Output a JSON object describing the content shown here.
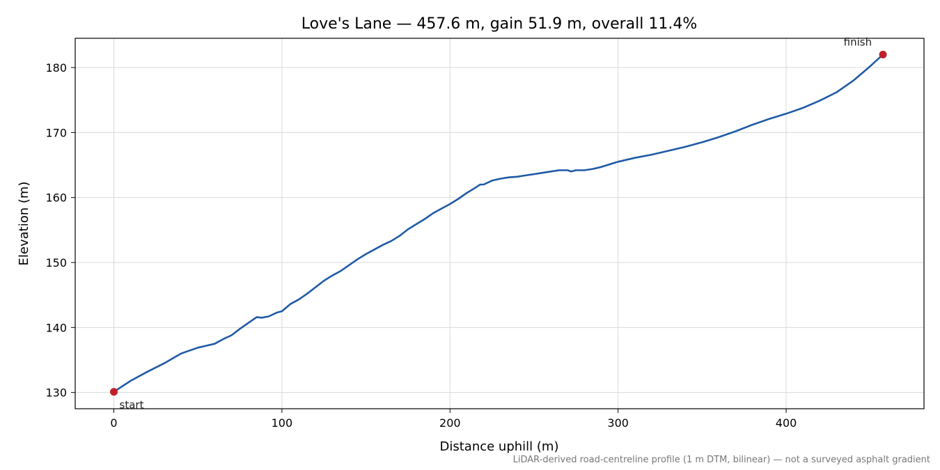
{
  "chart_data": {
    "type": "line",
    "title": "Love's Lane — 457.6 m, gain 51.9 m, overall 11.4%",
    "xlabel": "Distance uphill (m)",
    "ylabel": "Elevation (m)",
    "footnote": "LiDAR-derived road-centreline profile (1 m DTM, bilinear) — not a surveyed asphalt gradient",
    "xlim": [
      -23,
      482
    ],
    "ylim": [
      127.5,
      184.5
    ],
    "xticks": [
      0,
      100,
      200,
      300,
      400
    ],
    "yticks": [
      130,
      140,
      150,
      160,
      170,
      180
    ],
    "grid": true,
    "line_color": "#1f5aa6",
    "marker_color": "#c0202a",
    "series": [
      {
        "x": [
          0,
          10,
          20,
          30,
          40,
          50,
          55,
          60,
          65,
          70,
          75,
          80,
          85,
          88,
          92,
          97,
          100,
          105,
          110,
          115,
          120,
          125,
          130,
          135,
          140,
          145,
          150,
          155,
          160,
          165,
          170,
          175,
          180,
          185,
          190,
          195,
          200,
          205,
          210,
          215,
          218,
          220,
          225,
          230,
          235,
          240,
          245,
          250,
          255,
          260,
          265,
          270,
          272,
          275,
          280,
          285,
          290,
          300,
          310,
          320,
          330,
          340,
          350,
          360,
          370,
          380,
          390,
          400,
          410,
          420,
          430,
          440,
          450,
          457.6
        ],
        "y": [
          130.1,
          131.8,
          133.2,
          134.5,
          136.0,
          136.9,
          137.2,
          137.5,
          138.2,
          138.8,
          139.8,
          140.7,
          141.6,
          141.5,
          141.7,
          142.3,
          142.5,
          143.6,
          144.3,
          145.2,
          146.2,
          147.2,
          148.0,
          148.7,
          149.6,
          150.5,
          151.3,
          152.0,
          152.7,
          153.3,
          154.1,
          155.1,
          155.9,
          156.7,
          157.6,
          158.3,
          159.0,
          159.8,
          160.7,
          161.5,
          162.0,
          162.0,
          162.6,
          162.9,
          163.1,
          163.2,
          163.4,
          163.6,
          163.8,
          164.0,
          164.2,
          164.2,
          164.0,
          164.2,
          164.2,
          164.4,
          164.7,
          165.5,
          166.1,
          166.6,
          167.2,
          167.8,
          168.5,
          169.3,
          170.2,
          171.2,
          172.1,
          172.9,
          173.8,
          174.9,
          176.2,
          178.0,
          180.2,
          182.0
        ]
      }
    ],
    "annotations": [
      {
        "label": "start",
        "x": 0,
        "y": 130.1
      },
      {
        "label": "finish",
        "x": 457.6,
        "y": 182.0
      }
    ]
  }
}
